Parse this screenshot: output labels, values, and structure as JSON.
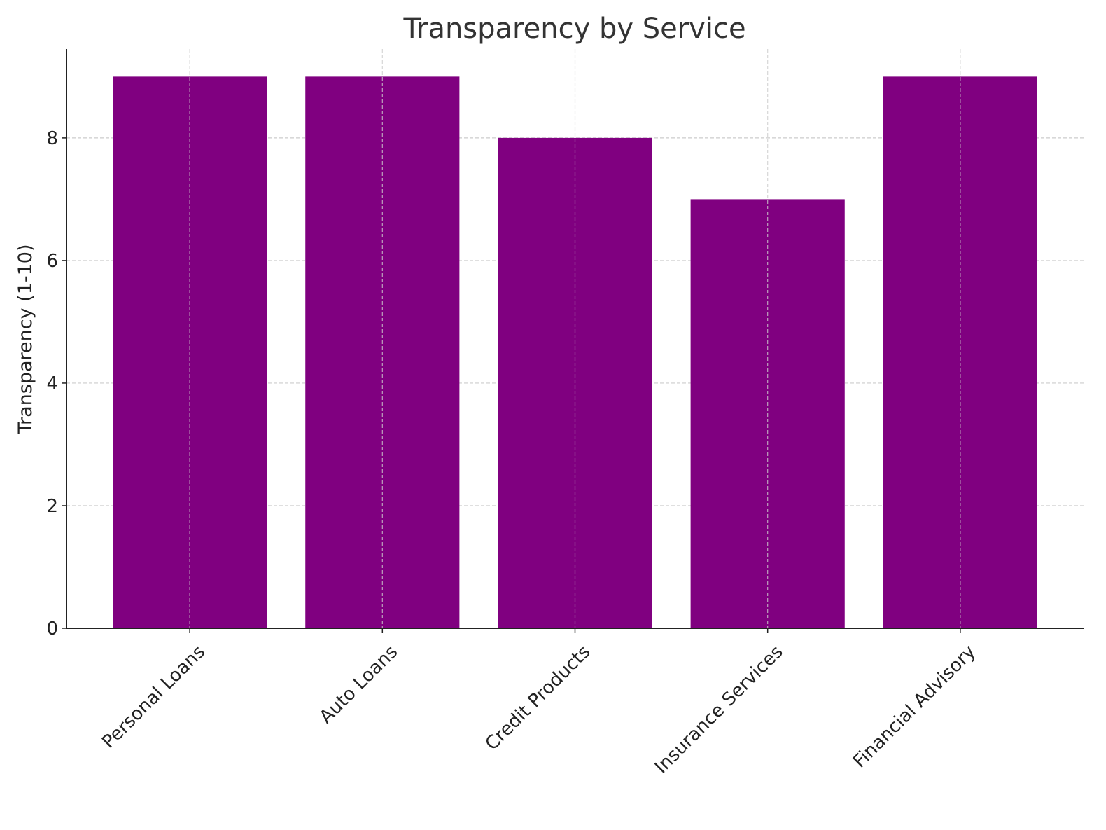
{
  "chart_data": {
    "type": "bar",
    "title": "Transparency by Service",
    "xlabel": "",
    "ylabel": "Transparency (1-10)",
    "categories": [
      "Personal Loans",
      "Auto Loans",
      "Credit Products",
      "Insurance Services",
      "Financial Advisory"
    ],
    "values": [
      9,
      9,
      8,
      7,
      9
    ],
    "ylim": [
      0,
      9.45
    ],
    "yticks": [
      0,
      2,
      4,
      6,
      8
    ],
    "grid": true,
    "bar_color": "#800080",
    "x_tick_rotation": 45
  }
}
